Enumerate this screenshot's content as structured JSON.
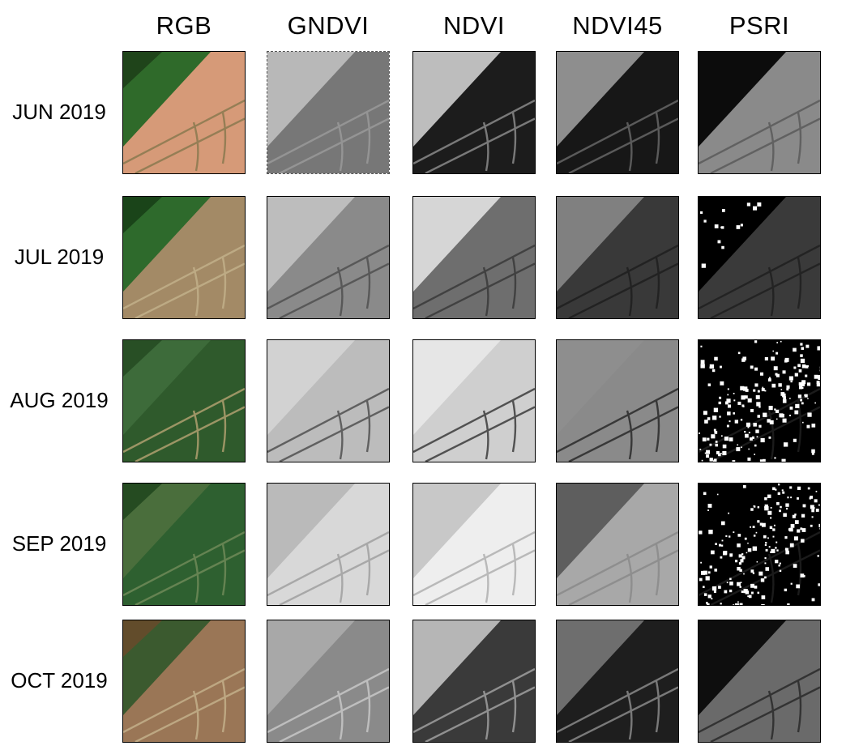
{
  "figure": {
    "columns": [
      {
        "label": "RGB"
      },
      {
        "label": "GNDVI"
      },
      {
        "label": "NDVI"
      },
      {
        "label": "NDVI45"
      },
      {
        "label": "PSRI"
      }
    ],
    "rows": [
      {
        "label": "JUN 2019"
      },
      {
        "label": "JUL 2019"
      },
      {
        "label": "AUG 2019"
      },
      {
        "label": "SEP 2019"
      },
      {
        "label": "OCT 2019"
      }
    ],
    "tiles": [
      [
        {
          "a": "#2f6a2a",
          "b": "#d69a78",
          "line": "#8a7a50",
          "dark": "#1c3d18"
        },
        {
          "a": "#b8b8b8",
          "b": "#777777",
          "line": "#9a9a9a"
        },
        {
          "a": "#bdbdbd",
          "b": "#1c1c1c",
          "line": "#8a8a8a"
        },
        {
          "a": "#8e8e8e",
          "b": "#171717",
          "line": "#666666"
        },
        {
          "a": "#0c0c0c",
          "b": "#8a8a8a",
          "line": "#5a5a5a"
        }
      ],
      [
        {
          "a": "#2e6a2c",
          "b": "#a38a66",
          "line": "#c2b08a",
          "dark": "#163d16"
        },
        {
          "a": "#bdbdbd",
          "b": "#8a8a8a",
          "line": "#505050"
        },
        {
          "a": "#d6d6d6",
          "b": "#6e6e6e",
          "line": "#3a3a3a"
        },
        {
          "a": "#808080",
          "b": "#393939",
          "line": "#1e1e1e"
        },
        {
          "a": "#000000",
          "b": "#3a3a3a",
          "line": "#202020",
          "speckle": "#ffffff"
        }
      ],
      [
        {
          "a": "#3d6b3a",
          "b": "#2f5a2c",
          "line": "#b0a070",
          "dark": "#244a22"
        },
        {
          "a": "#d2d2d2",
          "b": "#bcbcbc",
          "line": "#505050"
        },
        {
          "a": "#e6e6e6",
          "b": "#cfcfcf",
          "line": "#3c3c3c"
        },
        {
          "a": "#8e8e8e",
          "b": "#8a8a8a",
          "line": "#2a2a2a"
        },
        {
          "a": "#000000",
          "b": "#000000",
          "line": "#202020",
          "speckle": "#ffffff"
        }
      ],
      [
        {
          "a": "#4a6e3c",
          "b": "#2e6030",
          "line": "#6f8a58",
          "dark": "#1f451c"
        },
        {
          "a": "#bababa",
          "b": "#d8d8d8",
          "line": "#a0a0a0"
        },
        {
          "a": "#c8c8c8",
          "b": "#eeeeee",
          "line": "#b0b0b0"
        },
        {
          "a": "#5e5e5e",
          "b": "#a8a8a8",
          "line": "#8a8a8a"
        },
        {
          "a": "#000000",
          "b": "#000000",
          "line": "#202020",
          "speckle": "#ffffff"
        }
      ],
      [
        {
          "a": "#3b5a2f",
          "b": "#9a7656",
          "line": "#c4b08a",
          "dark": "#6a4a2a"
        },
        {
          "a": "#a8a8a8",
          "b": "#8a8a8a",
          "line": "#c8c8c8"
        },
        {
          "a": "#b6b6b6",
          "b": "#3a3a3a",
          "line": "#a0a0a0"
        },
        {
          "a": "#6e6e6e",
          "b": "#1e1e1e",
          "line": "#8a8a8a"
        },
        {
          "a": "#0e0e0e",
          "b": "#6a6a6a",
          "line": "#2a2a2a"
        }
      ]
    ]
  }
}
